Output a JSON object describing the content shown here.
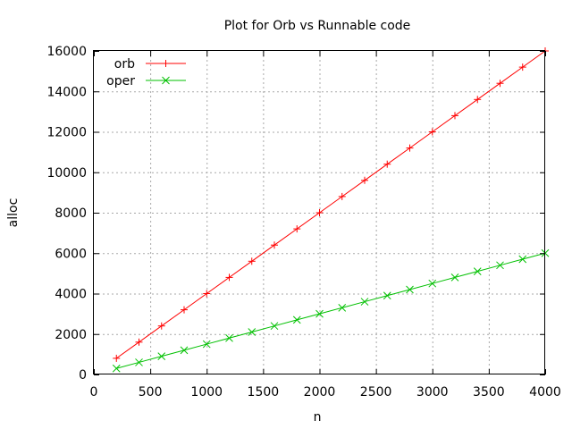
{
  "chart_data": {
    "type": "line",
    "title": "Plot for Orb vs Runnable code",
    "xlabel": "n",
    "ylabel": "alloc",
    "xlim": [
      0,
      4000
    ],
    "ylim": [
      0,
      16000
    ],
    "x_ticks": [
      0,
      500,
      1000,
      1500,
      2000,
      2500,
      3000,
      3500,
      4000
    ],
    "y_ticks": [
      0,
      2000,
      4000,
      6000,
      8000,
      10000,
      12000,
      14000,
      16000
    ],
    "grid": true,
    "legend_position": "top-left",
    "x": [
      200,
      400,
      600,
      800,
      1000,
      1200,
      1400,
      1600,
      1800,
      2000,
      2200,
      2400,
      2600,
      2800,
      3000,
      3200,
      3400,
      3600,
      3800,
      4000
    ],
    "series": [
      {
        "name": "orb",
        "color": "#ff0000",
        "marker": "plus",
        "values": [
          800,
          1600,
          2400,
          3200,
          4000,
          4800,
          5600,
          6400,
          7200,
          8000,
          8800,
          9600,
          10400,
          11200,
          12000,
          12800,
          13600,
          14400,
          15200,
          16000
        ]
      },
      {
        "name": "oper",
        "color": "#00c000",
        "marker": "cross",
        "values": [
          300,
          600,
          900,
          1200,
          1500,
          1800,
          2100,
          2400,
          2700,
          3000,
          3300,
          3600,
          3900,
          4200,
          4500,
          4800,
          5100,
          5400,
          5700,
          6000
        ]
      }
    ]
  }
}
